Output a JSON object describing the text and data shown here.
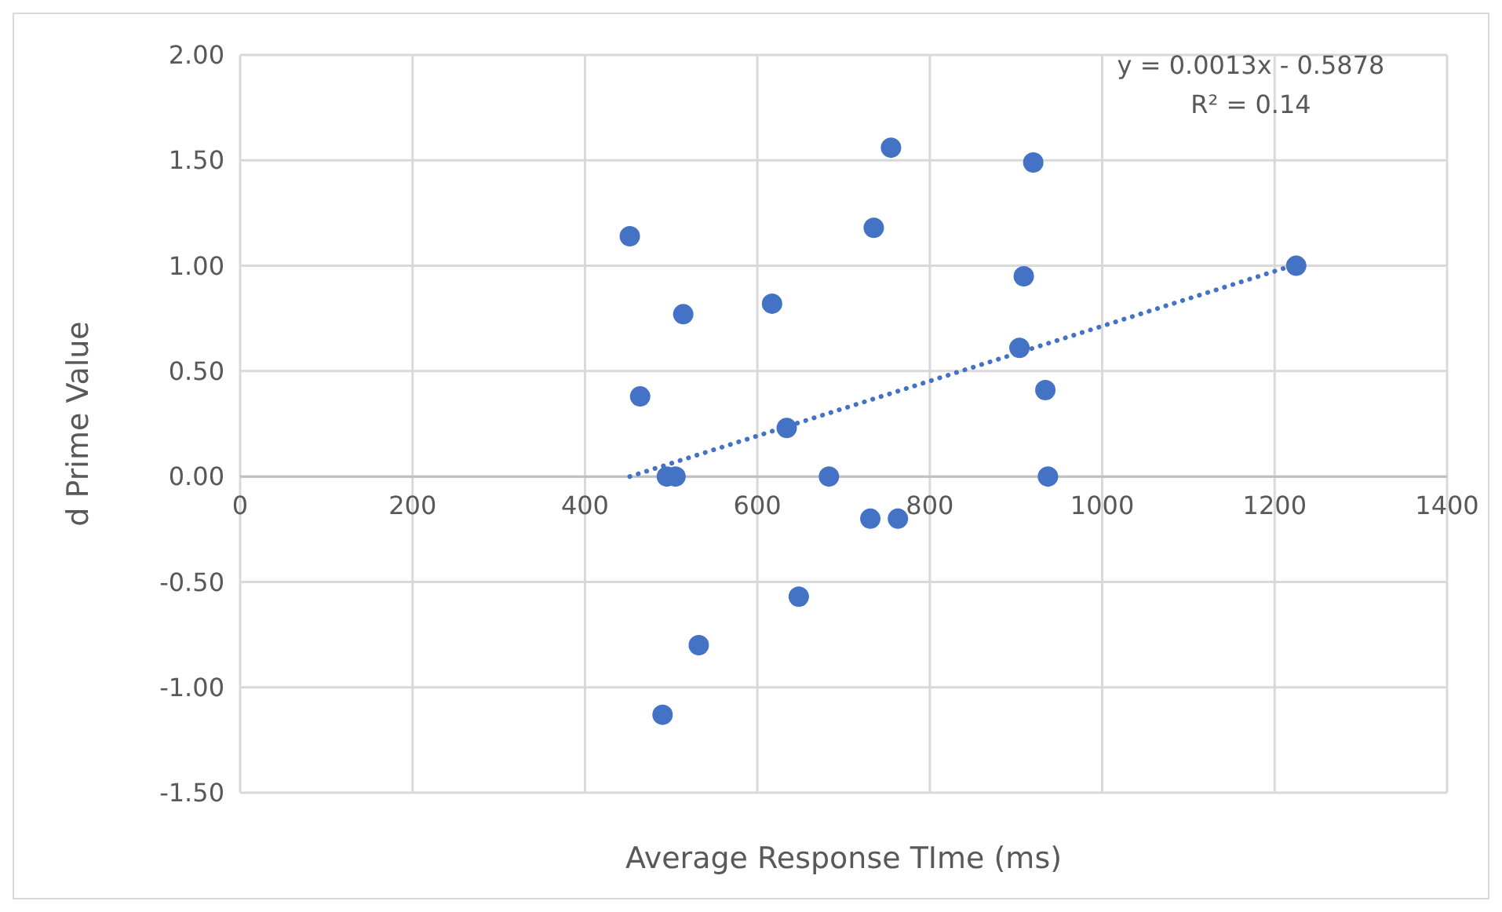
{
  "chart_data": {
    "type": "scatter",
    "xlabel": "Average Response TIme (ms)",
    "ylabel": "d Prime Value",
    "xlim": [
      0,
      1400
    ],
    "xticks": [
      0,
      200,
      400,
      600,
      800,
      1000,
      1200,
      1400
    ],
    "ylim": [
      -1.5,
      2
    ],
    "yticks": [
      {
        "value": -1.5,
        "label": "-1.50"
      },
      {
        "value": -1,
        "label": "-1.00"
      },
      {
        "value": -0.5,
        "label": "-0.50"
      },
      {
        "value": 0,
        "label": "0.00"
      },
      {
        "value": 0.5,
        "label": "0.50"
      },
      {
        "value": 1,
        "label": "1.00"
      },
      {
        "value": 1.5,
        "label": "1.50"
      },
      {
        "value": 2,
        "label": "2.00"
      }
    ],
    "grid": true,
    "marker": "circle",
    "series": [
      {
        "type": "scatter",
        "color": "#4472c4",
        "x": [
          452,
          464,
          514,
          495,
          505,
          490,
          532,
          617,
          634,
          683,
          648,
          731,
          763,
          755,
          735,
          920,
          909,
          904,
          934,
          937,
          1225
        ],
        "values": [
          1.14,
          0.38,
          0.77,
          0,
          0,
          -1.13,
          -0.8,
          0.82,
          0.23,
          0,
          -0.57,
          -0.2,
          -0.2,
          1.56,
          1.18,
          1.49,
          0.95,
          0.61,
          0.41,
          0,
          1
        ]
      },
      {
        "type": "line",
        "color": "#4472c4",
        "line_style": "dotted",
        "marker": "none",
        "x": [
          452,
          1220
        ],
        "values": [
          0,
          1
        ]
      }
    ],
    "annotations": [
      "y = 0.0013x - 0.5878",
      "R² = 0.14"
    ]
  }
}
